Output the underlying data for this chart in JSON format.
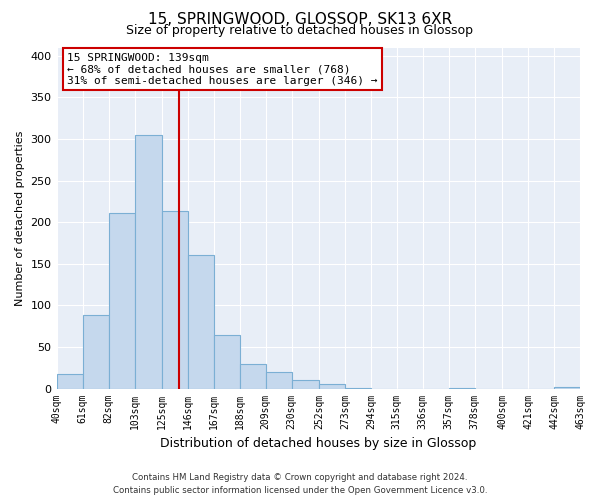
{
  "title": "15, SPRINGWOOD, GLOSSOP, SK13 6XR",
  "subtitle": "Size of property relative to detached houses in Glossop",
  "xlabel": "Distribution of detached houses by size in Glossop",
  "ylabel": "Number of detached properties",
  "bar_edges": [
    40,
    61,
    82,
    103,
    125,
    146,
    167,
    188,
    209,
    230,
    252,
    273,
    294,
    315,
    336,
    357,
    378,
    400,
    421,
    442,
    463
  ],
  "bar_heights": [
    17,
    89,
    211,
    305,
    214,
    160,
    64,
    30,
    20,
    10,
    5,
    1,
    0,
    0,
    0,
    1,
    0,
    0,
    0,
    2
  ],
  "bar_color": "#c5d8ed",
  "bar_edge_color": "#7bafd4",
  "property_line_x": 139,
  "property_line_color": "#cc0000",
  "ylim": [
    0,
    410
  ],
  "yticks": [
    0,
    50,
    100,
    150,
    200,
    250,
    300,
    350,
    400
  ],
  "annotation_text_line1": "15 SPRINGWOOD: 139sqm",
  "annotation_text_line2": "← 68% of detached houses are smaller (768)",
  "annotation_text_line3": "31% of semi-detached houses are larger (346) →",
  "footer_line1": "Contains HM Land Registry data © Crown copyright and database right 2024.",
  "footer_line2": "Contains public sector information licensed under the Open Government Licence v3.0.",
  "plot_bg_color": "#e8eef7",
  "figure_bg_color": "#ffffff",
  "grid_color": "#ffffff"
}
